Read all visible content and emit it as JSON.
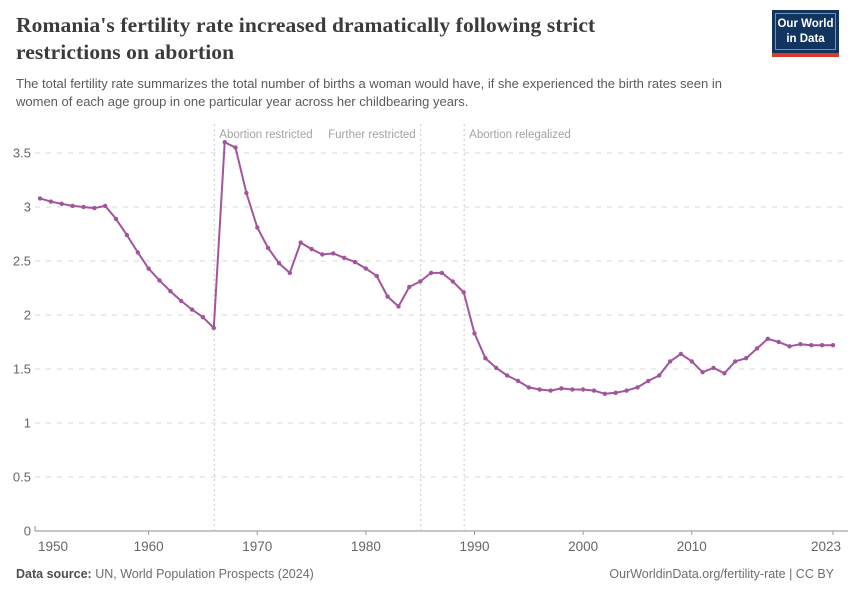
{
  "header": {
    "title": "Romania's fertility rate increased dramatically following strict restrictions on abortion",
    "subtitle": "The total fertility rate summarizes the total number of births a woman would have, if she experienced the birth rates seen in women of each age group in one particular year across her childbearing years.",
    "logo": {
      "line1": "Our World",
      "line2": "in Data",
      "bg_color": "#12355f",
      "accent_color": "#d93a2b"
    }
  },
  "chart_data": {
    "type": "line",
    "title": "Romania's fertility rate increased dramatically following strict restrictions on abortion",
    "xlabel": "",
    "ylabel": "",
    "xlim": [
      1950,
      2023
    ],
    "ylim": [
      0,
      3.5
    ],
    "yticks": [
      0,
      0.5,
      1,
      1.5,
      2,
      2.5,
      3,
      3.5
    ],
    "ytick_labels": [
      "0",
      "0.5",
      "1",
      "1.5",
      "2",
      "2.5",
      "3",
      "3.5"
    ],
    "xticks": [
      1950,
      1960,
      1970,
      1980,
      1990,
      2000,
      2010,
      2023
    ],
    "xtick_labels": [
      "1950",
      "1960",
      "1970",
      "1980",
      "1990",
      "2000",
      "2010",
      "2023"
    ],
    "grid": "dashed-horizontal",
    "legend": "none",
    "annotations": [
      {
        "year": 1966,
        "label": "Abortion restricted",
        "align": "left"
      },
      {
        "year": 1985,
        "label": "Further restricted",
        "align": "right"
      },
      {
        "year": 1989,
        "label": "Abortion relegalized",
        "align": "left"
      }
    ],
    "series": [
      {
        "name": "Romania",
        "color": "#a2559c",
        "x": [
          1950,
          1951,
          1952,
          1953,
          1954,
          1955,
          1956,
          1957,
          1958,
          1959,
          1960,
          1961,
          1962,
          1963,
          1964,
          1965,
          1966,
          1967,
          1968,
          1969,
          1970,
          1971,
          1972,
          1973,
          1974,
          1975,
          1976,
          1977,
          1978,
          1979,
          1980,
          1981,
          1982,
          1983,
          1984,
          1985,
          1986,
          1987,
          1988,
          1989,
          1990,
          1991,
          1992,
          1993,
          1994,
          1995,
          1996,
          1997,
          1998,
          1999,
          2000,
          2001,
          2002,
          2003,
          2004,
          2005,
          2006,
          2007,
          2008,
          2009,
          2010,
          2011,
          2012,
          2013,
          2014,
          2015,
          2016,
          2017,
          2018,
          2019,
          2020,
          2021,
          2022,
          2023
        ],
        "values": [
          3.08,
          3.05,
          3.03,
          3.01,
          3.0,
          2.99,
          3.01,
          2.89,
          2.74,
          2.58,
          2.43,
          2.32,
          2.22,
          2.13,
          2.05,
          1.98,
          1.88,
          3.6,
          3.55,
          3.13,
          2.81,
          2.62,
          2.48,
          2.39,
          2.67,
          2.61,
          2.56,
          2.57,
          2.53,
          2.49,
          2.43,
          2.36,
          2.17,
          2.08,
          2.26,
          2.31,
          2.39,
          2.39,
          2.31,
          2.21,
          1.83,
          1.6,
          1.51,
          1.44,
          1.39,
          1.33,
          1.31,
          1.3,
          1.32,
          1.31,
          1.31,
          1.3,
          1.27,
          1.28,
          1.3,
          1.33,
          1.39,
          1.44,
          1.57,
          1.64,
          1.57,
          1.47,
          1.51,
          1.46,
          1.57,
          1.6,
          1.69,
          1.78,
          1.75,
          1.71,
          1.73,
          1.72,
          1.72,
          1.72
        ]
      }
    ],
    "colors": {
      "line": "#a2559c",
      "gridline": "#dadada",
      "axis": "#8f8f8f",
      "tick_label": "#666666",
      "annotation_line": "#c8c8c8",
      "annotation_text": "#a3a3a3"
    }
  },
  "footer": {
    "source_label": "Data source:",
    "source_text": " UN, World Population Prospects (2024)",
    "citation": "OurWorldinData.org/fertility-rate | CC BY"
  }
}
